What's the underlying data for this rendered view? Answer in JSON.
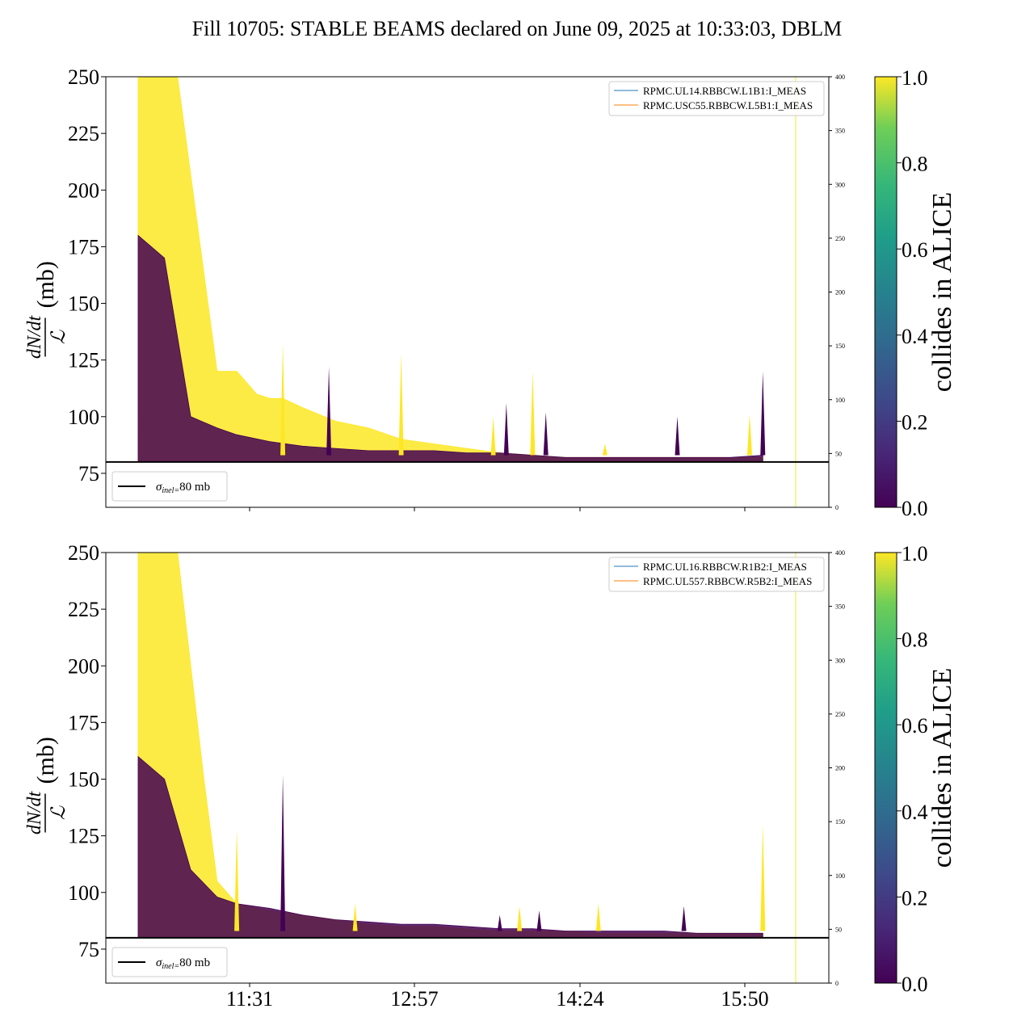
{
  "title": "Fill 10705: STABLE BEAMS declared on June 09, 2025 at 10:33:03, DBLM",
  "colors": {
    "yellow": "#fde725",
    "purple": "#440154",
    "black": "#000000",
    "legend_blue": "#1f77b4",
    "legend_orange": "#ff7f0e"
  },
  "chart_data": [
    {
      "type": "line",
      "panel": "top",
      "ylabel": "dN/dt / ℒ (mb)",
      "ylabel_parts": {
        "num": "dN/dt",
        "den": "ℒ",
        "unit": "(mb)"
      },
      "ylim": [
        60,
        250
      ],
      "yticks": [
        "75",
        "100",
        "125",
        "150",
        "175",
        "200",
        "225",
        "250"
      ],
      "right_ylim": [
        0,
        400
      ],
      "right_yticks": [
        "0",
        "50",
        "100",
        "150",
        "200",
        "250",
        "300",
        "350",
        "400"
      ],
      "xticks": [
        "",
        "",
        "",
        ""
      ],
      "legend_upper": [
        "RPMC.UL14.RBBCW.L1B1:I_MEAS",
        "RPMC.USC55.RBBCW.L5B1:I_MEAS"
      ],
      "legend_lower": "σinel=80 mb",
      "hline": 80,
      "colorbar": {
        "label": "collides in ALICE",
        "ticks": [
          "0.0",
          "0.2",
          "0.4",
          "0.6",
          "0.8",
          "1.0"
        ]
      },
      "series_upper": {
        "name": "collides in ALICE = 1.0",
        "x": [
          0,
          0.06,
          0.12,
          0.15,
          0.18,
          0.2,
          0.22,
          0.25,
          0.3,
          0.35,
          0.4,
          0.45,
          0.5,
          0.55,
          0.6,
          0.65,
          0.7,
          0.75,
          0.8,
          0.85,
          0.9,
          0.95
        ],
        "y": [
          250,
          250,
          120,
          120,
          110,
          108,
          108,
          104,
          98,
          95,
          90,
          88,
          86,
          84,
          83,
          82,
          82,
          82,
          82,
          82,
          82,
          82
        ]
      },
      "series_lower": {
        "name": "collides in ALICE = 0.0",
        "x": [
          0,
          0.04,
          0.08,
          0.12,
          0.15,
          0.2,
          0.25,
          0.3,
          0.35,
          0.4,
          0.45,
          0.5,
          0.55,
          0.6,
          0.65,
          0.7,
          0.75,
          0.8,
          0.85,
          0.9,
          0.95
        ],
        "y": [
          180,
          170,
          100,
          95,
          92,
          89,
          87,
          86,
          85,
          85,
          85,
          84,
          84,
          83,
          82,
          82,
          82,
          82,
          82,
          82,
          83
        ]
      },
      "spikes": [
        [
          0.22,
          132
        ],
        [
          0.29,
          122
        ],
        [
          0.4,
          128
        ],
        [
          0.54,
          95
        ],
        [
          0.54,
          100
        ],
        [
          0.56,
          106
        ],
        [
          0.6,
          120
        ],
        [
          0.62,
          102
        ],
        [
          0.71,
          88
        ],
        [
          0.82,
          100
        ],
        [
          0.93,
          101
        ],
        [
          0.95,
          120
        ]
      ]
    },
    {
      "type": "line",
      "panel": "bottom",
      "ylabel": "dN/dt / ℒ (mb)",
      "ylabel_parts": {
        "num": "dN/dt",
        "den": "ℒ",
        "unit": "(mb)"
      },
      "ylim": [
        60,
        250
      ],
      "yticks": [
        "75",
        "100",
        "125",
        "150",
        "175",
        "200",
        "225",
        "250"
      ],
      "right_ylim": [
        0,
        400
      ],
      "right_yticks": [
        "0",
        "50",
        "100",
        "150",
        "200",
        "250",
        "300",
        "350",
        "400"
      ],
      "xticks": [
        "11:31",
        "12:57",
        "14:24",
        "15:50"
      ],
      "legend_upper": [
        "RPMC.UL16.RBBCW.R1B2:I_MEAS",
        "RPMC.UL557.RBBCW.R5B2:I_MEAS"
      ],
      "legend_lower": "σinel=80 mb",
      "hline": 80,
      "colorbar": {
        "label": "collides in ALICE",
        "ticks": [
          "0.0",
          "0.2",
          "0.4",
          "0.6",
          "0.8",
          "1.0"
        ]
      },
      "series_upper": {
        "name": "collides in ALICE = 1.0",
        "x": [
          0,
          0.06,
          0.1,
          0.12,
          0.15,
          0.2,
          0.25,
          0.3,
          0.35,
          0.4,
          0.45,
          0.5,
          0.55,
          0.6,
          0.65,
          0.7,
          0.75,
          0.8,
          0.85,
          0.9,
          0.95
        ],
        "y": [
          250,
          250,
          150,
          105,
          95,
          92,
          90,
          88,
          86,
          85,
          85,
          84,
          83,
          83,
          83,
          82,
          82,
          82,
          82,
          82,
          82
        ]
      },
      "series_lower": {
        "name": "collides in ALICE = 0.0",
        "x": [
          0,
          0.04,
          0.08,
          0.12,
          0.15,
          0.2,
          0.25,
          0.3,
          0.35,
          0.4,
          0.45,
          0.5,
          0.55,
          0.6,
          0.65,
          0.7,
          0.75,
          0.8,
          0.85,
          0.9,
          0.95
        ],
        "y": [
          160,
          150,
          110,
          98,
          95,
          93,
          90,
          88,
          87,
          86,
          86,
          85,
          84,
          84,
          83,
          83,
          83,
          83,
          82,
          82,
          82
        ]
      },
      "spikes": [
        [
          0.15,
          128
        ],
        [
          0.22,
          152
        ],
        [
          0.33,
          95
        ],
        [
          0.55,
          90
        ],
        [
          0.58,
          94
        ],
        [
          0.61,
          92
        ],
        [
          0.7,
          95
        ],
        [
          0.83,
          94
        ],
        [
          0.95,
          130
        ]
      ]
    }
  ]
}
